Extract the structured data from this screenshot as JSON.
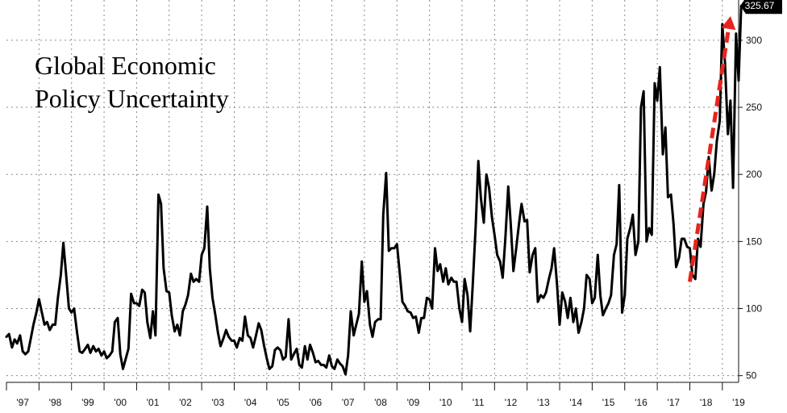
{
  "chart_data": {
    "type": "line",
    "title_lines": [
      "Global Economic",
      "Policy Uncertainty"
    ],
    "xlabel": "",
    "ylabel": "",
    "xlim": [
      1997.0,
      2019.5
    ],
    "ylim": [
      45,
      330
    ],
    "y_ticks": [
      50,
      100,
      150,
      200,
      250,
      300
    ],
    "x_ticks": [
      {
        "label": "'97",
        "x": 1997.5
      },
      {
        "label": "'98",
        "x": 1998.5
      },
      {
        "label": "'99",
        "x": 1999.5
      },
      {
        "label": "'00",
        "x": 2000.5
      },
      {
        "label": "'01",
        "x": 2001.5
      },
      {
        "label": "'02",
        "x": 2002.5
      },
      {
        "label": "'03",
        "x": 2003.5
      },
      {
        "label": "'04",
        "x": 2004.5
      },
      {
        "label": "'05",
        "x": 2005.5
      },
      {
        "label": "'06",
        "x": 2006.5
      },
      {
        "label": "'07",
        "x": 2007.5
      },
      {
        "label": "'08",
        "x": 2008.5
      },
      {
        "label": "'09",
        "x": 2009.5
      },
      {
        "label": "'10",
        "x": 2010.5
      },
      {
        "label": "'11",
        "x": 2011.5
      },
      {
        "label": "'12",
        "x": 2012.5
      },
      {
        "label": "'13",
        "x": 2013.5
      },
      {
        "label": "'14",
        "x": 2014.5
      },
      {
        "label": "'15",
        "x": 2015.5
      },
      {
        "label": "'16",
        "x": 2016.5
      },
      {
        "label": "'17",
        "x": 2017.5
      },
      {
        "label": "'18",
        "x": 2018.5
      },
      {
        "label": "'19",
        "x": 2019.5
      }
    ],
    "grid": true,
    "last_value_label": "325.67",
    "trend_arrow": {
      "color": "#e8241c",
      "from": [
        2018.0,
        120
      ],
      "to": [
        2019.25,
        318
      ]
    },
    "series": [
      {
        "color": "#000000",
        "points": [
          [
            1997.0,
            79
          ],
          [
            1997.08,
            81
          ],
          [
            1997.17,
            71
          ],
          [
            1997.25,
            77
          ],
          [
            1997.33,
            74
          ],
          [
            1997.42,
            80
          ],
          [
            1997.5,
            68
          ],
          [
            1997.58,
            66
          ],
          [
            1997.67,
            68
          ],
          [
            1997.75,
            78
          ],
          [
            1997.83,
            88
          ],
          [
            1997.92,
            97
          ],
          [
            1998.0,
            107
          ],
          [
            1998.08,
            98
          ],
          [
            1998.17,
            88
          ],
          [
            1998.25,
            90
          ],
          [
            1998.33,
            84
          ],
          [
            1998.42,
            88
          ],
          [
            1998.5,
            88
          ],
          [
            1998.58,
            108
          ],
          [
            1998.67,
            125
          ],
          [
            1998.75,
            149
          ],
          [
            1998.83,
            126
          ],
          [
            1998.92,
            100
          ],
          [
            1999.0,
            97
          ],
          [
            1999.08,
            100
          ],
          [
            1999.17,
            82
          ],
          [
            1999.25,
            68
          ],
          [
            1999.33,
            67
          ],
          [
            1999.42,
            70
          ],
          [
            1999.5,
            73
          ],
          [
            1999.58,
            67
          ],
          [
            1999.67,
            72
          ],
          [
            1999.75,
            68
          ],
          [
            1999.83,
            70
          ],
          [
            1999.92,
            65
          ],
          [
            2000.0,
            68
          ],
          [
            2000.08,
            63
          ],
          [
            2000.17,
            65
          ],
          [
            2000.25,
            68
          ],
          [
            2000.33,
            90
          ],
          [
            2000.42,
            93
          ],
          [
            2000.5,
            66
          ],
          [
            2000.58,
            55
          ],
          [
            2000.67,
            63
          ],
          [
            2000.75,
            70
          ],
          [
            2000.83,
            111
          ],
          [
            2000.92,
            104
          ],
          [
            2001.0,
            104
          ],
          [
            2001.08,
            102
          ],
          [
            2001.17,
            114
          ],
          [
            2001.25,
            112
          ],
          [
            2001.33,
            90
          ],
          [
            2001.42,
            78
          ],
          [
            2001.5,
            98
          ],
          [
            2001.58,
            80
          ],
          [
            2001.67,
            185
          ],
          [
            2001.75,
            178
          ],
          [
            2001.83,
            130
          ],
          [
            2001.92,
            113
          ],
          [
            2002.0,
            112
          ],
          [
            2002.08,
            95
          ],
          [
            2002.17,
            83
          ],
          [
            2002.25,
            88
          ],
          [
            2002.33,
            80
          ],
          [
            2002.42,
            98
          ],
          [
            2002.5,
            103
          ],
          [
            2002.58,
            110
          ],
          [
            2002.67,
            126
          ],
          [
            2002.75,
            120
          ],
          [
            2002.83,
            122
          ],
          [
            2002.92,
            120
          ],
          [
            2003.0,
            140
          ],
          [
            2003.08,
            145
          ],
          [
            2003.17,
            176
          ],
          [
            2003.25,
            130
          ],
          [
            2003.33,
            108
          ],
          [
            2003.42,
            95
          ],
          [
            2003.5,
            82
          ],
          [
            2003.58,
            72
          ],
          [
            2003.67,
            78
          ],
          [
            2003.75,
            84
          ],
          [
            2003.83,
            79
          ],
          [
            2003.92,
            76
          ],
          [
            2004.0,
            76
          ],
          [
            2004.08,
            71
          ],
          [
            2004.17,
            78
          ],
          [
            2004.25,
            76
          ],
          [
            2004.33,
            94
          ],
          [
            2004.42,
            80
          ],
          [
            2004.5,
            78
          ],
          [
            2004.58,
            71
          ],
          [
            2004.67,
            80
          ],
          [
            2004.75,
            89
          ],
          [
            2004.83,
            84
          ],
          [
            2004.92,
            72
          ],
          [
            2005.0,
            63
          ],
          [
            2005.08,
            55
          ],
          [
            2005.17,
            57
          ],
          [
            2005.25,
            69
          ],
          [
            2005.33,
            71
          ],
          [
            2005.42,
            69
          ],
          [
            2005.5,
            62
          ],
          [
            2005.58,
            64
          ],
          [
            2005.67,
            92
          ],
          [
            2005.75,
            62
          ],
          [
            2005.83,
            66
          ],
          [
            2005.92,
            70
          ],
          [
            2006.0,
            58
          ],
          [
            2006.08,
            56
          ],
          [
            2006.17,
            72
          ],
          [
            2006.25,
            62
          ],
          [
            2006.33,
            73
          ],
          [
            2006.42,
            67
          ],
          [
            2006.5,
            60
          ],
          [
            2006.58,
            61
          ],
          [
            2006.67,
            58
          ],
          [
            2006.75,
            58
          ],
          [
            2006.83,
            56
          ],
          [
            2006.92,
            65
          ],
          [
            2007.0,
            57
          ],
          [
            2007.08,
            55
          ],
          [
            2007.17,
            62
          ],
          [
            2007.25,
            59
          ],
          [
            2007.33,
            57
          ],
          [
            2007.42,
            51
          ],
          [
            2007.5,
            65
          ],
          [
            2007.58,
            98
          ],
          [
            2007.67,
            80
          ],
          [
            2007.75,
            88
          ],
          [
            2007.83,
            96
          ],
          [
            2007.92,
            135
          ],
          [
            2008.0,
            105
          ],
          [
            2008.08,
            113
          ],
          [
            2008.17,
            88
          ],
          [
            2008.25,
            79
          ],
          [
            2008.33,
            90
          ],
          [
            2008.42,
            92
          ],
          [
            2008.5,
            92
          ],
          [
            2008.58,
            170
          ],
          [
            2008.67,
            201
          ],
          [
            2008.75,
            143
          ],
          [
            2008.83,
            145
          ],
          [
            2008.92,
            145
          ],
          [
            2009.0,
            148
          ],
          [
            2009.08,
            128
          ],
          [
            2009.17,
            105
          ],
          [
            2009.25,
            102
          ],
          [
            2009.33,
            98
          ],
          [
            2009.42,
            97
          ],
          [
            2009.5,
            93
          ],
          [
            2009.58,
            94
          ],
          [
            2009.67,
            82
          ],
          [
            2009.75,
            93
          ],
          [
            2009.83,
            93
          ],
          [
            2009.92,
            108
          ],
          [
            2010.0,
            107
          ],
          [
            2010.08,
            100
          ],
          [
            2010.17,
            145
          ],
          [
            2010.25,
            128
          ],
          [
            2010.33,
            133
          ],
          [
            2010.42,
            120
          ],
          [
            2010.5,
            130
          ],
          [
            2010.58,
            118
          ],
          [
            2010.67,
            123
          ],
          [
            2010.75,
            120
          ],
          [
            2010.83,
            120
          ],
          [
            2010.92,
            100
          ],
          [
            2011.0,
            90
          ],
          [
            2011.08,
            122
          ],
          [
            2011.17,
            110
          ],
          [
            2011.25,
            83
          ],
          [
            2011.33,
            118
          ],
          [
            2011.42,
            161
          ],
          [
            2011.5,
            210
          ],
          [
            2011.58,
            182
          ],
          [
            2011.67,
            164
          ],
          [
            2011.75,
            200
          ],
          [
            2011.83,
            190
          ],
          [
            2011.92,
            168
          ],
          [
            2012.0,
            155
          ],
          [
            2012.08,
            140
          ],
          [
            2012.17,
            135
          ],
          [
            2012.25,
            123
          ],
          [
            2012.33,
            152
          ],
          [
            2012.42,
            191
          ],
          [
            2012.5,
            162
          ],
          [
            2012.58,
            128
          ],
          [
            2012.67,
            146
          ],
          [
            2012.75,
            163
          ],
          [
            2012.83,
            178
          ],
          [
            2012.92,
            165
          ],
          [
            2013.0,
            166
          ],
          [
            2013.08,
            127
          ],
          [
            2013.17,
            140
          ],
          [
            2013.25,
            145
          ],
          [
            2013.33,
            105
          ],
          [
            2013.42,
            110
          ],
          [
            2013.5,
            108
          ],
          [
            2013.58,
            112
          ],
          [
            2013.67,
            122
          ],
          [
            2013.75,
            130
          ],
          [
            2013.83,
            145
          ],
          [
            2013.92,
            118
          ],
          [
            2014.0,
            88
          ],
          [
            2014.08,
            112
          ],
          [
            2014.17,
            105
          ],
          [
            2014.25,
            93
          ],
          [
            2014.33,
            108
          ],
          [
            2014.42,
            90
          ],
          [
            2014.5,
            100
          ],
          [
            2014.58,
            82
          ],
          [
            2014.67,
            90
          ],
          [
            2014.75,
            100
          ],
          [
            2014.83,
            125
          ],
          [
            2014.92,
            122
          ],
          [
            2015.0,
            104
          ],
          [
            2015.08,
            108
          ],
          [
            2015.17,
            140
          ],
          [
            2015.25,
            110
          ],
          [
            2015.33,
            95
          ],
          [
            2015.42,
            100
          ],
          [
            2015.5,
            104
          ],
          [
            2015.58,
            110
          ],
          [
            2015.67,
            140
          ],
          [
            2015.75,
            148
          ],
          [
            2015.83,
            192
          ],
          [
            2015.92,
            97
          ],
          [
            2016.0,
            110
          ],
          [
            2016.08,
            152
          ],
          [
            2016.17,
            160
          ],
          [
            2016.25,
            170
          ],
          [
            2016.33,
            140
          ],
          [
            2016.42,
            150
          ],
          [
            2016.5,
            250
          ],
          [
            2016.58,
            262
          ],
          [
            2016.67,
            150
          ],
          [
            2016.75,
            160
          ],
          [
            2016.83,
            155
          ],
          [
            2016.92,
            268
          ],
          [
            2017.0,
            255
          ],
          [
            2017.08,
            280
          ],
          [
            2017.17,
            215
          ],
          [
            2017.25,
            235
          ],
          [
            2017.33,
            183
          ],
          [
            2017.42,
            185
          ],
          [
            2017.5,
            163
          ],
          [
            2017.58,
            131
          ],
          [
            2017.67,
            138
          ],
          [
            2017.75,
            152
          ],
          [
            2017.83,
            152
          ],
          [
            2017.92,
            146
          ],
          [
            2018.0,
            145
          ],
          [
            2018.08,
            125
          ],
          [
            2018.17,
            122
          ],
          [
            2018.25,
            152
          ],
          [
            2018.33,
            146
          ],
          [
            2018.42,
            178
          ],
          [
            2018.5,
            187
          ],
          [
            2018.58,
            213
          ],
          [
            2018.67,
            188
          ],
          [
            2018.75,
            200
          ],
          [
            2018.83,
            225
          ],
          [
            2018.92,
            240
          ],
          [
            2019.0,
            312
          ],
          [
            2019.08,
            283
          ],
          [
            2019.17,
            230
          ],
          [
            2019.25,
            255
          ],
          [
            2019.33,
            190
          ],
          [
            2019.42,
            305
          ],
          [
            2019.5,
            270
          ],
          [
            2019.58,
            325.67
          ]
        ]
      }
    ]
  }
}
